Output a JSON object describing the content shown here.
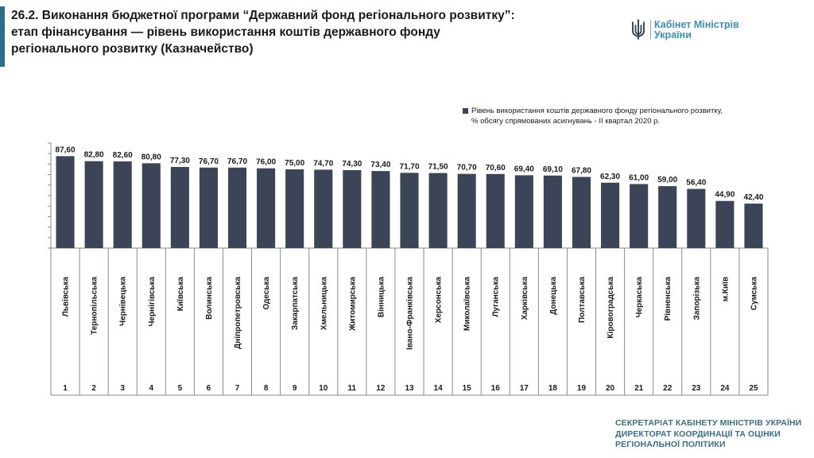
{
  "header": {
    "title_line1": "26.2. Виконання бюджетної програми “Державний фонд регіонального розвитку”:",
    "title_line2": "етап фінансування — рівень використання коштів державного фонду",
    "title_line3": "регіонального розвитку (Казначейство)"
  },
  "logo": {
    "line1": "Кабінет Міністрів",
    "line2": "України",
    "accent": "#3b8fb0"
  },
  "footer": {
    "line1": "СЕКРЕТАРІАТ КАБІНЕТУ МІНІСТРІВ УКРАЇНИ",
    "line2": "ДИРЕКТОРАТ КООРДИНАЦІЇ ТА ОЦІНКИ",
    "line3": "РЕГІОНАЛЬНОЇ ПОЛІТИКИ"
  },
  "chart_data": {
    "type": "bar",
    "title": "",
    "xlabel": "",
    "ylabel": "",
    "ylim": [
      0,
      100
    ],
    "grid": false,
    "legend_position": "top-right",
    "bar_color": "#3b4557",
    "categories": [
      "Львівська",
      "Тернопільська",
      "Чернівецька",
      "Чернігівська",
      "Київська",
      "Волинська",
      "Дніпропетровська",
      "Одеська",
      "Закарпатська",
      "Хмельницька",
      "Житомирська",
      "Вінницька",
      "Івано-Франківська",
      "Херсонська",
      "Миколаївська",
      "Луганська",
      "Харківська",
      "Донецька",
      "Полтавська",
      "Кіровоградська",
      "Черкаська",
      "Рівненська",
      "Запорізька",
      "м.Київ",
      "Сумська"
    ],
    "ranks": [
      "1",
      "2",
      "3",
      "4",
      "5",
      "6",
      "7",
      "8",
      "9",
      "10",
      "11",
      "12",
      "13",
      "14",
      "15",
      "16",
      "17",
      "18",
      "19",
      "20",
      "21",
      "22",
      "23",
      "24",
      "25"
    ],
    "series": [
      {
        "name": "Рівень використання коштів державного фонду регіонального розвитку, % обсягу спрямованих асигнувань - ІІ квартал 2020 р.",
        "values": [
          87.6,
          82.8,
          82.6,
          80.8,
          77.3,
          76.7,
          76.7,
          76.0,
          75.0,
          74.7,
          74.3,
          73.4,
          71.7,
          71.5,
          70.7,
          70.6,
          69.4,
          69.1,
          67.8,
          62.3,
          61.0,
          59.0,
          56.4,
          44.9,
          42.4
        ],
        "labels": [
          "87,60",
          "82,80",
          "82,60",
          "80,80",
          "77,30",
          "76,70",
          "76,70",
          "76,00",
          "75,00",
          "74,70",
          "74,30",
          "73,40",
          "71,70",
          "71,50",
          "70,70",
          "70,60",
          "69,40",
          "69,10",
          "67,80",
          "62,30",
          "61,00",
          "59,00",
          "56,40",
          "44,90",
          "42,40"
        ]
      }
    ],
    "legend": {
      "line1": "Рівень використання коштів державного фонду регіонального розвитку,",
      "line2": "% обсягу спрямованих асигнувань - ІІ квартал 2020 р."
    }
  }
}
